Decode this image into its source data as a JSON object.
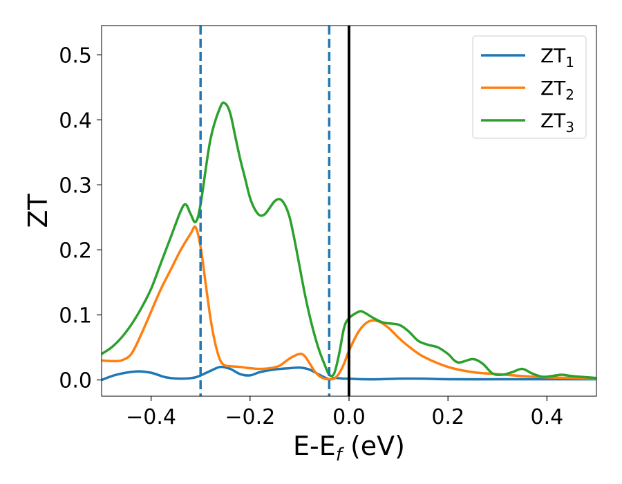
{
  "chart_data": {
    "type": "line",
    "xlabel": "E-E",
    "xlabel_sub": "f",
    "xlabel_unit": " (eV)",
    "ylabel": "ZT",
    "xlim": [
      -0.5,
      0.5
    ],
    "ylim": [
      -0.025,
      0.545
    ],
    "xticks": [
      -0.4,
      -0.2,
      0.0,
      0.2,
      0.4
    ],
    "xtick_labels": [
      "−0.4",
      "−0.2",
      "0.0",
      "0.2",
      "0.4"
    ],
    "yticks": [
      0.0,
      0.1,
      0.2,
      0.3,
      0.4,
      0.5
    ],
    "ytick_labels": [
      "0.0",
      "0.1",
      "0.2",
      "0.3",
      "0.4",
      "0.5"
    ],
    "grid": false,
    "legend_position": "top-right",
    "vlines": [
      {
        "x": -0.3,
        "style": "dashed",
        "color": "#1f77b4"
      },
      {
        "x": -0.04,
        "style": "dashed",
        "color": "#1f77b4"
      },
      {
        "x": 0.0,
        "style": "solid",
        "color": "#000000"
      }
    ],
    "series": [
      {
        "name": "ZT",
        "sub": "1",
        "color": "#1f77b4",
        "x": [
          -0.5,
          -0.47,
          -0.43,
          -0.4,
          -0.37,
          -0.34,
          -0.31,
          -0.28,
          -0.26,
          -0.24,
          -0.22,
          -0.2,
          -0.18,
          -0.15,
          -0.12,
          -0.1,
          -0.08,
          -0.06,
          -0.04,
          -0.03,
          -0.01,
          0.0,
          0.03,
          0.06,
          0.1,
          0.15,
          0.2,
          0.3,
          0.4,
          0.5
        ],
        "values": [
          0.0,
          0.008,
          0.013,
          0.011,
          0.004,
          0.002,
          0.004,
          0.014,
          0.02,
          0.017,
          0.009,
          0.007,
          0.012,
          0.016,
          0.018,
          0.019,
          0.016,
          0.008,
          0.001,
          0.003,
          0.002,
          0.002,
          0.001,
          0.001,
          0.002,
          0.002,
          0.001,
          0.001,
          0.001,
          0.001
        ]
      },
      {
        "name": "ZT",
        "sub": "2",
        "color": "#ff7f0e",
        "x": [
          -0.5,
          -0.48,
          -0.46,
          -0.44,
          -0.42,
          -0.4,
          -0.38,
          -0.36,
          -0.34,
          -0.32,
          -0.31,
          -0.3,
          -0.29,
          -0.28,
          -0.27,
          -0.26,
          -0.25,
          -0.24,
          -0.22,
          -0.2,
          -0.18,
          -0.16,
          -0.14,
          -0.12,
          -0.1,
          -0.09,
          -0.08,
          -0.07,
          -0.06,
          -0.05,
          -0.04,
          -0.03,
          -0.02,
          -0.01,
          0.0,
          0.02,
          0.04,
          0.06,
          0.08,
          0.1,
          0.12,
          0.15,
          0.2,
          0.25,
          0.3,
          0.35,
          0.4,
          0.45,
          0.5
        ],
        "values": [
          0.03,
          0.029,
          0.03,
          0.04,
          0.07,
          0.105,
          0.14,
          0.17,
          0.2,
          0.225,
          0.235,
          0.205,
          0.15,
          0.095,
          0.055,
          0.03,
          0.022,
          0.021,
          0.02,
          0.018,
          0.017,
          0.018,
          0.022,
          0.033,
          0.04,
          0.037,
          0.026,
          0.014,
          0.006,
          0.002,
          0.001,
          0.002,
          0.01,
          0.025,
          0.045,
          0.075,
          0.09,
          0.09,
          0.08,
          0.065,
          0.052,
          0.036,
          0.02,
          0.012,
          0.009,
          0.006,
          0.004,
          0.003,
          0.002
        ]
      },
      {
        "name": "ZT",
        "sub": "3",
        "color": "#2ca02c",
        "x": [
          -0.5,
          -0.48,
          -0.46,
          -0.44,
          -0.42,
          -0.4,
          -0.38,
          -0.36,
          -0.34,
          -0.33,
          -0.32,
          -0.31,
          -0.3,
          -0.28,
          -0.26,
          -0.25,
          -0.24,
          -0.23,
          -0.22,
          -0.21,
          -0.2,
          -0.19,
          -0.18,
          -0.17,
          -0.16,
          -0.15,
          -0.14,
          -0.13,
          -0.12,
          -0.11,
          -0.1,
          -0.09,
          -0.08,
          -0.07,
          -0.06,
          -0.05,
          -0.04,
          -0.03,
          -0.02,
          -0.01,
          0.0,
          0.02,
          0.03,
          0.05,
          0.07,
          0.1,
          0.12,
          0.14,
          0.16,
          0.18,
          0.2,
          0.22,
          0.25,
          0.27,
          0.29,
          0.31,
          0.33,
          0.35,
          0.37,
          0.39,
          0.41,
          0.43,
          0.45,
          0.5
        ],
        "values": [
          0.04,
          0.05,
          0.065,
          0.085,
          0.11,
          0.14,
          0.18,
          0.22,
          0.26,
          0.27,
          0.255,
          0.243,
          0.27,
          0.37,
          0.42,
          0.425,
          0.41,
          0.375,
          0.34,
          0.31,
          0.28,
          0.262,
          0.253,
          0.255,
          0.265,
          0.275,
          0.278,
          0.27,
          0.25,
          0.215,
          0.175,
          0.135,
          0.1,
          0.07,
          0.045,
          0.025,
          0.008,
          0.01,
          0.04,
          0.08,
          0.095,
          0.105,
          0.104,
          0.095,
          0.088,
          0.085,
          0.075,
          0.06,
          0.054,
          0.05,
          0.04,
          0.027,
          0.032,
          0.025,
          0.01,
          0.008,
          0.012,
          0.017,
          0.01,
          0.005,
          0.006,
          0.008,
          0.006,
          0.003
        ]
      }
    ]
  }
}
